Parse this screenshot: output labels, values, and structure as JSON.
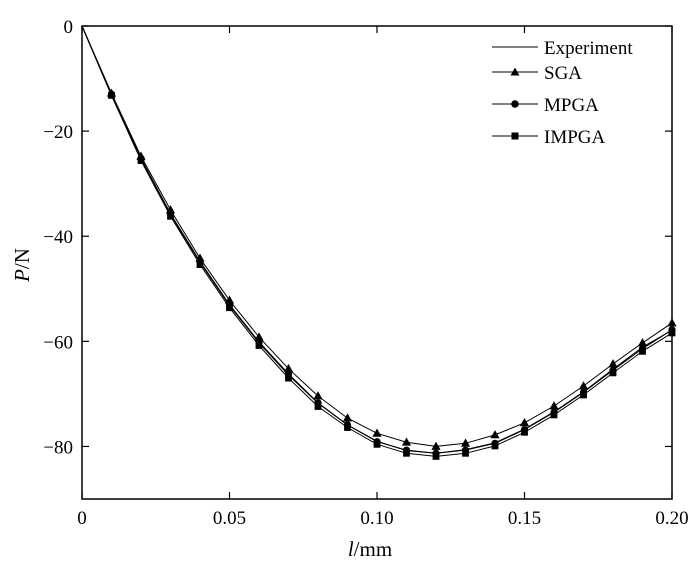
{
  "chart_data": {
    "type": "line",
    "title": "",
    "xlabel_italic": "l",
    "xlabel_unit": "/mm",
    "ylabel_italic": "P",
    "ylabel_unit": "/N",
    "xlim": [
      0,
      0.2
    ],
    "ylim": [
      -90,
      0
    ],
    "xticks": [
      0,
      0.05,
      0.1,
      0.15,
      0.2
    ],
    "xtick_labels": [
      "0",
      "0.05",
      "0.10",
      "0.15",
      "0.20"
    ],
    "yticks": [
      0,
      -20,
      -40,
      -60,
      -80
    ],
    "ytick_labels": [
      "0",
      "−20",
      "−40",
      "−60",
      "−80"
    ],
    "grid": false,
    "legend_position": "top-right",
    "series": [
      {
        "name": "Experiment",
        "marker": "none",
        "x": [
          0,
          0.01,
          0.02,
          0.03,
          0.04,
          0.05,
          0.06,
          0.07,
          0.08,
          0.09,
          0.1,
          0.11,
          0.12,
          0.13,
          0.14,
          0.15,
          0.16,
          0.17,
          0.18,
          0.19,
          0.2
        ],
        "y": [
          0,
          -13.2,
          -25.4,
          -35.9,
          -45.0,
          -53.2,
          -60.3,
          -66.4,
          -71.8,
          -75.9,
          -79.0,
          -80.8,
          -81.3,
          -80.6,
          -79.3,
          -76.7,
          -73.4,
          -69.6,
          -65.3,
          -61.1,
          -57.9
        ]
      },
      {
        "name": "SGA",
        "marker": "triangle",
        "x": [
          0.01,
          0.02,
          0.03,
          0.04,
          0.05,
          0.06,
          0.07,
          0.08,
          0.09,
          0.1,
          0.11,
          0.12,
          0.13,
          0.14,
          0.15,
          0.16,
          0.17,
          0.18,
          0.19,
          0.2
        ],
        "y": [
          -12.8,
          -24.8,
          -35.0,
          -44.2,
          -52.2,
          -59.2,
          -65.2,
          -70.4,
          -74.6,
          -77.5,
          -79.2,
          -80.0,
          -79.4,
          -77.8,
          -75.5,
          -72.3,
          -68.5,
          -64.3,
          -60.3,
          -56.5
        ]
      },
      {
        "name": "MPGA",
        "marker": "circle",
        "x": [
          0.01,
          0.02,
          0.03,
          0.04,
          0.05,
          0.06,
          0.07,
          0.08,
          0.09,
          0.1,
          0.11,
          0.12,
          0.13,
          0.14,
          0.15,
          0.16,
          0.17,
          0.18,
          0.19,
          0.2
        ],
        "y": [
          -13.0,
          -25.2,
          -35.7,
          -44.8,
          -53.0,
          -60.1,
          -66.2,
          -71.7,
          -75.9,
          -79.1,
          -80.7,
          -81.3,
          -80.7,
          -79.4,
          -76.8,
          -73.5,
          -69.7,
          -65.5,
          -61.4,
          -57.8
        ]
      },
      {
        "name": "IMPGA",
        "marker": "square",
        "x": [
          0.01,
          0.02,
          0.03,
          0.04,
          0.05,
          0.06,
          0.07,
          0.08,
          0.09,
          0.1,
          0.11,
          0.12,
          0.13,
          0.14,
          0.15,
          0.16,
          0.17,
          0.18,
          0.19,
          0.2
        ],
        "y": [
          -13.2,
          -25.6,
          -36.2,
          -45.4,
          -53.6,
          -60.8,
          -67.0,
          -72.4,
          -76.4,
          -79.6,
          -81.3,
          -81.9,
          -81.3,
          -79.9,
          -77.3,
          -74.0,
          -70.2,
          -66.0,
          -61.9,
          -58.4
        ]
      }
    ]
  }
}
